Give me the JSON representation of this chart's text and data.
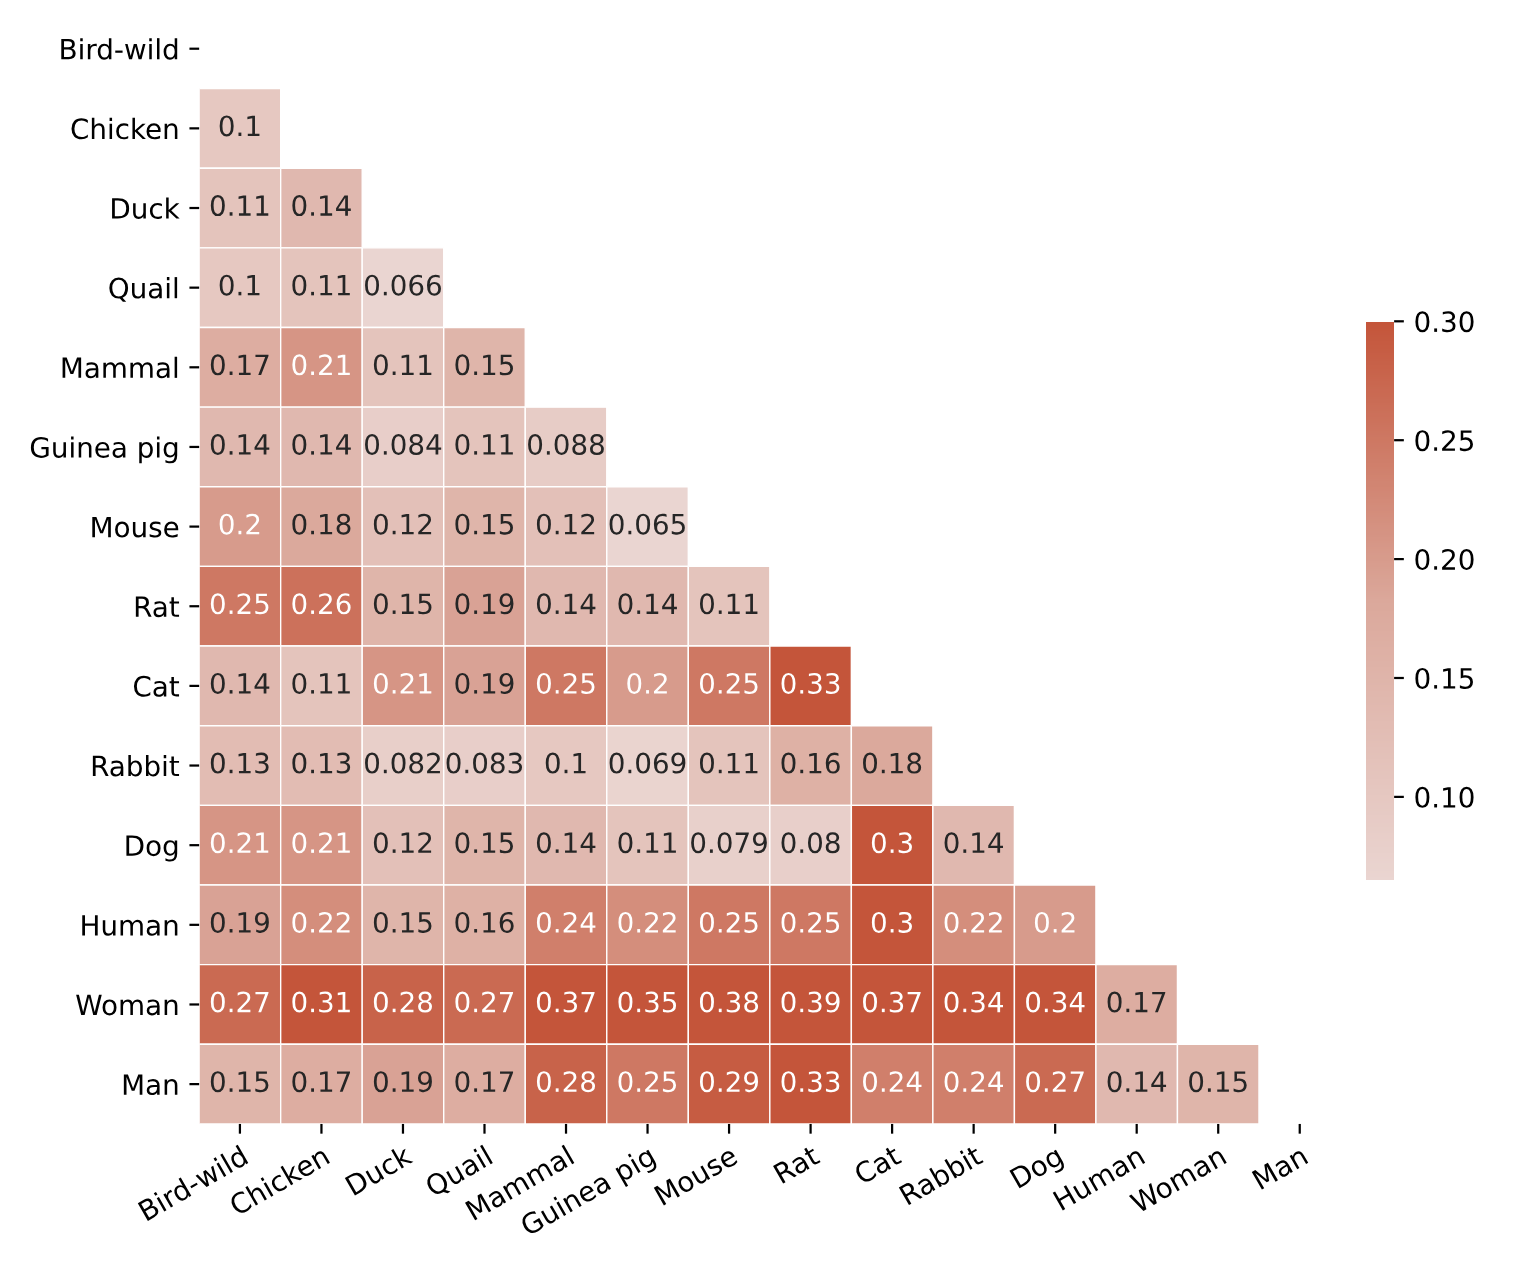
{
  "chart_data": {
    "type": "heatmap",
    "data_labels": true,
    "categories": [
      "Bird-wild",
      "Chicken",
      "Duck",
      "Quail",
      "Mammal",
      "Guinea pig",
      "Mouse",
      "Rat",
      "Cat",
      "Rabbit",
      "Dog",
      "Human",
      "Woman",
      "Man"
    ],
    "y_categories": [
      "Bird-wild",
      "Chicken",
      "Duck",
      "Quail",
      "Mammal",
      "Guinea pig",
      "Mouse",
      "Rat",
      "Cat",
      "Rabbit",
      "Dog",
      "Human",
      "Woman",
      "Man"
    ],
    "cells": [
      [
        null,
        null,
        null,
        null,
        null,
        null,
        null,
        null,
        null,
        null,
        null,
        null,
        null,
        null
      ],
      [
        0.1,
        null,
        null,
        null,
        null,
        null,
        null,
        null,
        null,
        null,
        null,
        null,
        null,
        null
      ],
      [
        0.11,
        0.14,
        null,
        null,
        null,
        null,
        null,
        null,
        null,
        null,
        null,
        null,
        null,
        null
      ],
      [
        0.1,
        0.11,
        0.066,
        null,
        null,
        null,
        null,
        null,
        null,
        null,
        null,
        null,
        null,
        null
      ],
      [
        0.17,
        0.21,
        0.11,
        0.15,
        null,
        null,
        null,
        null,
        null,
        null,
        null,
        null,
        null,
        null
      ],
      [
        0.14,
        0.14,
        0.084,
        0.11,
        0.088,
        null,
        null,
        null,
        null,
        null,
        null,
        null,
        null,
        null
      ],
      [
        0.2,
        0.18,
        0.12,
        0.15,
        0.12,
        0.065,
        null,
        null,
        null,
        null,
        null,
        null,
        null,
        null
      ],
      [
        0.25,
        0.26,
        0.15,
        0.19,
        0.14,
        0.14,
        0.11,
        null,
        null,
        null,
        null,
        null,
        null,
        null
      ],
      [
        0.14,
        0.11,
        0.21,
        0.19,
        0.25,
        0.2,
        0.25,
        0.33,
        null,
        null,
        null,
        null,
        null,
        null
      ],
      [
        0.13,
        0.13,
        0.082,
        0.083,
        0.1,
        0.069,
        0.11,
        0.16,
        0.18,
        null,
        null,
        null,
        null,
        null
      ],
      [
        0.21,
        0.21,
        0.12,
        0.15,
        0.14,
        0.11,
        0.079,
        0.08,
        0.3,
        0.14,
        null,
        null,
        null,
        null
      ],
      [
        0.19,
        0.22,
        0.15,
        0.16,
        0.24,
        0.22,
        0.25,
        0.25,
        0.3,
        0.22,
        0.2,
        null,
        null,
        null
      ],
      [
        0.27,
        0.31,
        0.28,
        0.27,
        0.37,
        0.35,
        0.38,
        0.39,
        0.37,
        0.34,
        0.34,
        0.17,
        null,
        null
      ],
      [
        0.15,
        0.17,
        0.19,
        0.17,
        0.28,
        0.25,
        0.29,
        0.33,
        0.24,
        0.24,
        0.27,
        0.14,
        0.15,
        null
      ]
    ],
    "clim": [
      0.065,
      0.3
    ],
    "cticks": [
      {
        "value": 0.1,
        "label": "0.10"
      },
      {
        "value": 0.15,
        "label": "0.15"
      },
      {
        "value": 0.2,
        "label": "0.20"
      },
      {
        "value": 0.25,
        "label": "0.25"
      },
      {
        "value": 0.3,
        "label": "0.30"
      }
    ]
  }
}
